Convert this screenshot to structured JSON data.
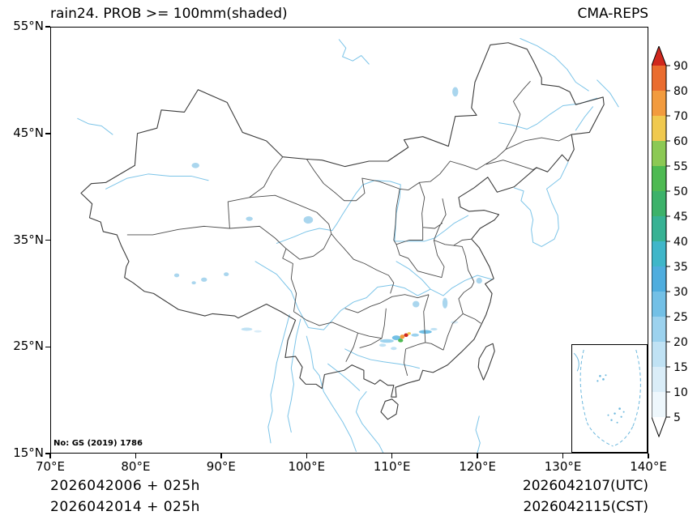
{
  "header": {
    "title": "rain24. PROB >= 100mm(shaded)",
    "product": "CMA-REPS"
  },
  "map_note": {
    "license": "No: GS (2019) 1786"
  },
  "axes": {
    "lon_range": [
      70,
      140
    ],
    "lat_range": [
      15,
      55
    ],
    "x_tick_lons": [
      70,
      80,
      90,
      100,
      110,
      120,
      130,
      140
    ],
    "x_tick_labels": [
      "70°E",
      "80°E",
      "90°E",
      "100°E",
      "110°E",
      "120°E",
      "130°E",
      "140°E"
    ],
    "y_tick_lats": [
      55,
      45,
      35,
      25,
      15
    ],
    "y_tick_labels": [
      "55°N",
      "45°N",
      "35°N",
      "25°N",
      "15°N"
    ]
  },
  "footer": {
    "left_line1": "2026042006 + 025h",
    "left_line2": "2026042014 + 025h",
    "right_line1": "2026042107(UTC)",
    "right_line2": "2026042115(CST)"
  },
  "colorbar": {
    "labels_top_to_bottom": [
      "90",
      "80",
      "70",
      "60",
      "55",
      "50",
      "45",
      "40",
      "35",
      "30",
      "25",
      "20",
      "15",
      "10",
      "5"
    ],
    "colors_bottom_to_top": [
      "#ffffff",
      "#eef7fc",
      "#daedf8",
      "#c0e2f4",
      "#9cd2ee",
      "#73c0e6",
      "#4fadde",
      "#3fb6c9",
      "#37b294",
      "#3cb26a",
      "#4eba52",
      "#8cc954",
      "#f0c94f",
      "#f29b3e",
      "#ea6c2f",
      "#d0281e"
    ]
  },
  "chart_data": {
    "type": "heatmap",
    "title": "rain24. PROB >= 100mm(shaded)",
    "model": "CMA-REPS",
    "quantity": "Probability of 24h accumulated rainfall >= 100mm (%, shaded)",
    "lon_range_deg_e": [
      70,
      140
    ],
    "lat_range_deg_n": [
      15,
      55
    ],
    "x_ticks_deg_e": [
      70,
      80,
      90,
      100,
      110,
      120,
      130,
      140
    ],
    "y_ticks_deg_n": [
      15,
      25,
      35,
      45,
      55
    ],
    "levels_percent": [
      5,
      10,
      15,
      20,
      25,
      30,
      35,
      40,
      45,
      50,
      55,
      60,
      70,
      80,
      90
    ],
    "init_time": "2026042006(UTC) / 2026042014(CST)",
    "lead_time": "025h",
    "valid_time": "2026042107(UTC) / 2026042115(CST)",
    "legend_position": "right",
    "grid": false,
    "shaded_cells": [
      {
        "lon": 109.4,
        "lat": 25.55,
        "w": 1.6,
        "h": 0.35,
        "percent": 20,
        "color": "#9cd2ee"
      },
      {
        "lon": 108.9,
        "lat": 25.15,
        "w": 0.8,
        "h": 0.3,
        "percent": 15,
        "color": "#c0e2f4"
      },
      {
        "lon": 110.2,
        "lat": 24.85,
        "w": 0.7,
        "h": 0.3,
        "percent": 15,
        "color": "#c0e2f4"
      },
      {
        "lon": 110.5,
        "lat": 25.85,
        "w": 1.0,
        "h": 0.45,
        "percent": 30,
        "color": "#73c0e6"
      },
      {
        "lon": 111.0,
        "lat": 25.6,
        "w": 0.6,
        "h": 0.35,
        "percent": 50,
        "color": "#4eba52"
      },
      {
        "lon": 111.2,
        "lat": 25.95,
        "w": 0.55,
        "h": 0.4,
        "percent": 75,
        "color": "#f29b3e"
      },
      {
        "lon": 111.65,
        "lat": 26.1,
        "w": 0.5,
        "h": 0.35,
        "percent": 90,
        "color": "#d0281e"
      },
      {
        "lon": 112.0,
        "lat": 26.25,
        "w": 0.4,
        "h": 0.25,
        "percent": 65,
        "color": "#f0c94f"
      },
      {
        "lon": 112.7,
        "lat": 26.1,
        "w": 0.9,
        "h": 0.3,
        "percent": 25,
        "color": "#9cd2ee"
      },
      {
        "lon": 113.9,
        "lat": 26.4,
        "w": 1.5,
        "h": 0.35,
        "percent": 25,
        "color": "#73c0e6"
      },
      {
        "lon": 114.9,
        "lat": 26.65,
        "w": 0.8,
        "h": 0.25,
        "percent": 15,
        "color": "#c0e2f4"
      },
      {
        "lon": 117.3,
        "lat": 27.3,
        "w": 0.9,
        "h": 0.25,
        "percent": 10,
        "color": "#daedf8"
      },
      {
        "lon": 93.0,
        "lat": 26.65,
        "w": 1.3,
        "h": 0.3,
        "percent": 15,
        "color": "#c0e2f4"
      },
      {
        "lon": 94.3,
        "lat": 26.45,
        "w": 0.9,
        "h": 0.22,
        "percent": 10,
        "color": "#daedf8"
      }
    ]
  }
}
